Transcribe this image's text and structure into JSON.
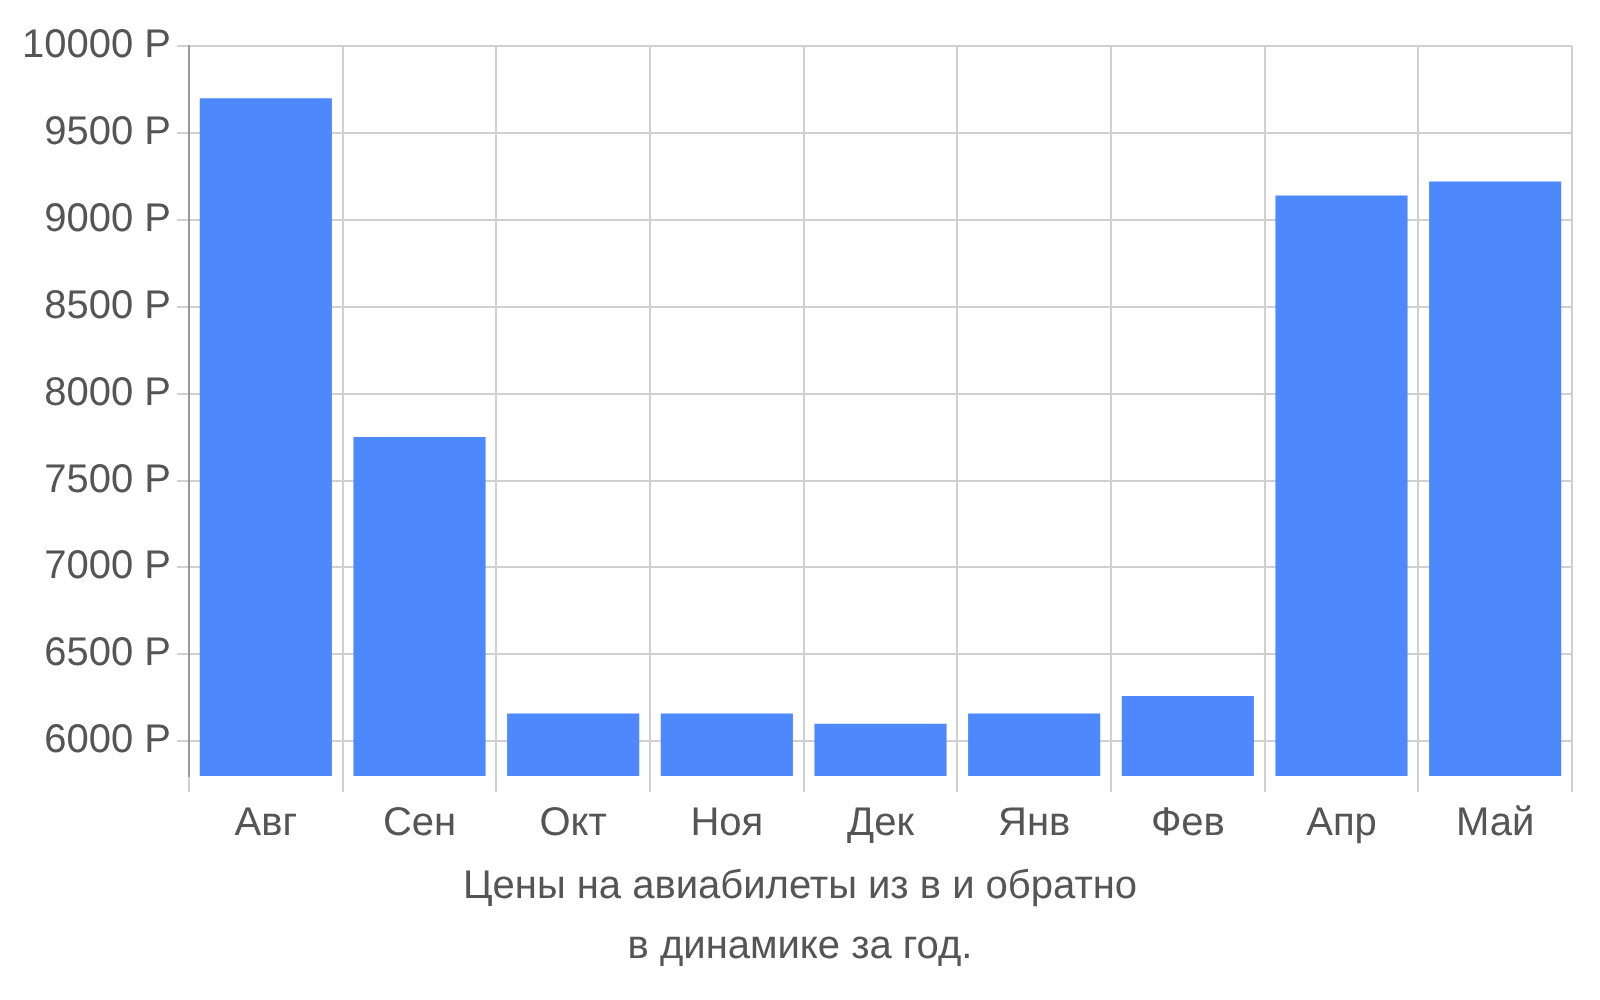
{
  "chart_data": {
    "type": "bar",
    "title": "Цены на авиабилеты из  в  и обратно",
    "annotations": [
      "в динамике за год."
    ],
    "categories": [
      "Авг",
      "Сен",
      "Окт",
      "Ноя",
      "Дек",
      "Янв",
      "Фев",
      "Апр",
      "Май"
    ],
    "values": [
      9700,
      7750,
      6160,
      6160,
      6100,
      6160,
      6260,
      9140,
      9220
    ],
    "color": "#4d88fd",
    "ylim": [
      5800,
      10000
    ],
    "yticks": [
      {
        "value": 6000,
        "label": "6000 Р"
      },
      {
        "value": 6500,
        "label": "6500 Р"
      },
      {
        "value": 7000,
        "label": "7000 Р"
      },
      {
        "value": 7500,
        "label": "7500 Р"
      },
      {
        "value": 8000,
        "label": "8000 Р"
      },
      {
        "value": 8500,
        "label": "8500 Р"
      },
      {
        "value": 9000,
        "label": "9000 Р"
      },
      {
        "value": 9500,
        "label": "9500 Р"
      },
      {
        "value": 10000,
        "label": "10000 Р"
      }
    ],
    "grid": true
  }
}
